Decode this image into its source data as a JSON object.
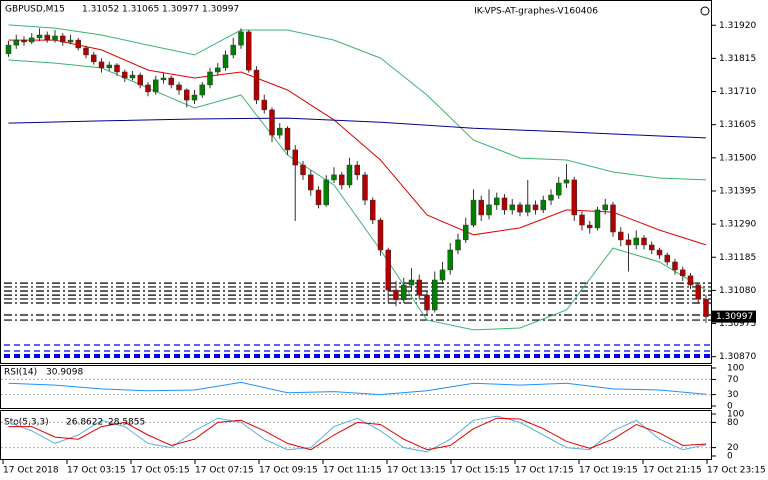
{
  "chart_data": [
    {
      "type": "candlestick",
      "title": "GBPUSD,M15",
      "label": "IK-VPS-AT-graphes-V160406",
      "open": [
        1.3183,
        1.31857,
        1.31873,
        1.31867,
        1.3188,
        1.31889,
        1.31873,
        1.31886,
        1.31867,
        1.31873,
        1.31848,
        1.31826,
        1.31804,
        1.31785,
        1.31794,
        1.31772,
        1.31753,
        1.31762,
        1.31731,
        1.31709,
        1.31747,
        1.31753,
        1.31731,
        1.31715,
        1.31683,
        1.31699,
        1.31731,
        1.31772,
        1.31785,
        1.31826,
        1.31857,
        1.31899,
        1.31778,
        1.31683,
        1.31652,
        1.31572,
        1.31594,
        1.31525,
        1.31477,
        1.31446,
        1.31398,
        1.31351,
        1.3143,
        1.31446,
        1.31414,
        1.31477,
        1.31446,
        1.31366,
        1.31303,
        1.31208,
        1.31081,
        1.3105,
        1.31097,
        1.31113,
        1.31065,
        1.31018,
        1.31113,
        1.31145,
        1.31208,
        1.3124,
        1.31287,
        1.31366,
        1.31319,
        1.31351,
        1.31373,
        1.31335,
        1.31351,
        1.31328,
        1.31351,
        1.31335,
        1.31366,
        1.31382,
        1.3142,
        1.3143,
        1.31319,
        1.31287,
        1.31278,
        1.31335,
        1.31351,
        1.31265,
        1.3124,
        1.31224,
        1.31246,
        1.31224,
        1.31208,
        1.31192,
        1.3117,
        1.31145,
        1.31126,
        1.31097,
        1.31052
      ],
      "high": [
        1.3187,
        1.3189,
        1.31885,
        1.31895,
        1.3191,
        1.319,
        1.31905,
        1.31895,
        1.3189,
        1.3188,
        1.31855,
        1.31835,
        1.31815,
        1.31805,
        1.318,
        1.3178,
        1.31775,
        1.3177,
        1.3174,
        1.3176,
        1.3177,
        1.3176,
        1.3174,
        1.3172,
        1.31715,
        1.3174,
        1.31785,
        1.318,
        1.3184,
        1.3188,
        1.3191,
        1.31905,
        1.3179,
        1.317,
        1.3166,
        1.3161,
        1.316,
        1.3154,
        1.3149,
        1.3146,
        1.3141,
        1.31445,
        1.3147,
        1.31455,
        1.315,
        1.3149,
        1.31455,
        1.31375,
        1.3131,
        1.31215,
        1.3111,
        1.3112,
        1.3115,
        1.3113,
        1.3108,
        1.3114,
        1.3117,
        1.3123,
        1.3126,
        1.3131,
        1.314,
        1.3138,
        1.314,
        1.3139,
        1.31385,
        1.3137,
        1.3136,
        1.3143,
        1.31365,
        1.3138,
        1.314,
        1.3144,
        1.3148,
        1.3144,
        1.3133,
        1.313,
        1.31345,
        1.3137,
        1.3136,
        1.3128,
        1.3126,
        1.3127,
        1.31255,
        1.31235,
        1.31215,
        1.312,
        1.3118,
        1.31155,
        1.31135,
        1.31105,
        1.31065
      ],
      "low": [
        1.3182,
        1.31845,
        1.31855,
        1.3186,
        1.3187,
        1.31865,
        1.31865,
        1.31855,
        1.3186,
        1.3184,
        1.31815,
        1.31795,
        1.3177,
        1.31775,
        1.3176,
        1.3174,
        1.31745,
        1.3172,
        1.31695,
        1.317,
        1.31735,
        1.3172,
        1.317,
        1.3166,
        1.3167,
        1.3169,
        1.3172,
        1.3176,
        1.31775,
        1.31815,
        1.31845,
        1.3177,
        1.3167,
        1.3164,
        1.3155,
        1.3156,
        1.3151,
        1.313,
        1.3143,
        1.3138,
        1.3134,
        1.31345,
        1.3142,
        1.314,
        1.31405,
        1.3143,
        1.3135,
        1.3129,
        1.3119,
        1.3104,
        1.3103,
        1.3104,
        1.3108,
        1.3105,
        1.31,
        1.3101,
        1.311,
        1.3113,
        1.31195,
        1.3123,
        1.3128,
        1.313,
        1.31305,
        1.31335,
        1.3132,
        1.3132,
        1.31315,
        1.31315,
        1.3132,
        1.31325,
        1.3135,
        1.3137,
        1.31405,
        1.313,
        1.3127,
        1.3126,
        1.3127,
        1.3132,
        1.3125,
        1.3122,
        1.3114,
        1.3121,
        1.3121,
        1.31195,
        1.3118,
        1.3116,
        1.3113,
        1.3111,
        1.31085,
        1.3104,
        1.30977
      ],
      "close": [
        1.31857,
        1.31873,
        1.31867,
        1.3188,
        1.31889,
        1.31873,
        1.31886,
        1.31867,
        1.31873,
        1.31848,
        1.31826,
        1.31804,
        1.31785,
        1.31794,
        1.31772,
        1.31753,
        1.31762,
        1.31731,
        1.31709,
        1.31747,
        1.31753,
        1.31731,
        1.31715,
        1.31683,
        1.31699,
        1.31731,
        1.31772,
        1.31785,
        1.31826,
        1.31857,
        1.31899,
        1.31778,
        1.31683,
        1.31652,
        1.31572,
        1.31594,
        1.31525,
        1.31477,
        1.31446,
        1.31398,
        1.31351,
        1.3143,
        1.31446,
        1.31414,
        1.31477,
        1.31446,
        1.31366,
        1.31303,
        1.31208,
        1.31081,
        1.3105,
        1.31097,
        1.31113,
        1.31065,
        1.31018,
        1.31113,
        1.31145,
        1.31208,
        1.3124,
        1.31287,
        1.31366,
        1.31319,
        1.31351,
        1.31373,
        1.31335,
        1.31351,
        1.31328,
        1.31351,
        1.31335,
        1.31366,
        1.31382,
        1.3142,
        1.3143,
        1.31319,
        1.31287,
        1.31278,
        1.31335,
        1.31351,
        1.31265,
        1.3124,
        1.31224,
        1.31246,
        1.31224,
        1.31208,
        1.31192,
        1.3117,
        1.31145,
        1.31126,
        1.31097,
        1.31052,
        1.30997
      ],
      "up_color": "#008000",
      "down_color": "#b00000",
      "ylim": [
        1.3085,
        1.32
      ],
      "yticks": [
        {
          "value": 1.3192,
          "label": "1.31920"
        },
        {
          "value": 1.31815,
          "label": "1.31815"
        },
        {
          "value": 1.3171,
          "label": "1.31710"
        },
        {
          "value": 1.31605,
          "label": "1.31605"
        },
        {
          "value": 1.315,
          "label": "1.31500"
        },
        {
          "value": 1.31395,
          "label": "1.31395"
        },
        {
          "value": 1.3129,
          "label": "1.31290"
        },
        {
          "value": 1.31185,
          "label": "1.31185"
        },
        {
          "value": 1.3108,
          "label": "1.31080"
        },
        {
          "value": 1.30975,
          "label": "1.30975"
        },
        {
          "value": 1.3087,
          "label": "1.30870"
        }
      ],
      "x_labels": [
        "17 Oct 2018",
        "17 Oct 03:15",
        "17 Oct 05:15",
        "17 Oct 07:15",
        "17 Oct 09:15",
        "17 Oct 11:15",
        "17 Oct 13:15",
        "17 Oct 15:15",
        "17 Oct 17:15",
        "17 Oct 19:15",
        "17 Oct 21:15",
        "17 Oct 23:15"
      ],
      "series": [
        {
          "color": "#3cb371",
          "x": [
            0,
            6,
            12,
            18,
            24,
            30,
            36,
            42,
            48,
            54,
            60,
            66,
            72,
            78,
            84,
            90
          ],
          "values": [
            1.31921,
            1.31911,
            1.31889,
            1.31857,
            1.31826,
            1.31905,
            1.31905,
            1.31873,
            1.31816,
            1.31699,
            1.31556,
            1.31499,
            1.31493,
            1.31455,
            1.31436,
            1.3143
          ]
        },
        {
          "color": "#3cb371",
          "x": [
            0,
            6,
            12,
            18,
            24,
            30,
            36,
            42,
            48,
            54,
            60,
            66,
            72,
            78,
            84,
            90
          ],
          "values": [
            1.3181,
            1.318,
            1.31785,
            1.31721,
            1.31658,
            1.31699,
            1.31509,
            1.31414,
            1.31208,
            1.30986,
            1.30955,
            1.30961,
            1.31018,
            1.31214,
            1.3117,
            1.31081
          ]
        },
        {
          "color": "#e00000",
          "x": [
            0,
            6,
            12,
            18,
            24,
            30,
            36,
            42,
            48,
            54,
            60,
            66,
            72,
            78,
            84,
            90
          ],
          "values": [
            1.31873,
            1.31873,
            1.31842,
            1.31778,
            1.31753,
            1.31772,
            1.31715,
            1.3162,
            1.31493,
            1.31319,
            1.31256,
            1.31278,
            1.31335,
            1.31328,
            1.31271,
            1.31224
          ]
        },
        {
          "color": "#000090",
          "x": [
            0,
            12,
            24,
            36,
            48,
            60,
            72,
            84,
            90
          ],
          "values": [
            1.3161,
            1.31617,
            1.31623,
            1.31626,
            1.31613,
            1.31594,
            1.31582,
            1.31569,
            1.31563
          ]
        }
      ],
      "order_lines": [
        {
          "price": 1.31103,
          "color": "#000000"
        },
        {
          "price": 1.31091,
          "color": "#000000"
        },
        {
          "price": 1.31078,
          "color": "#000000"
        },
        {
          "price": 1.31065,
          "color": "#000000"
        },
        {
          "price": 1.31053,
          "color": "#000000"
        },
        {
          "price": 1.3104,
          "color": "#000000"
        },
        {
          "price": 1.31002,
          "color": "#000000"
        },
        {
          "price": 1.30986,
          "color": "#000000"
        },
        {
          "price": 1.30907,
          "color": "#0000ff"
        },
        {
          "price": 1.30888,
          "color": "#0000ff"
        },
        {
          "price": 1.30872,
          "color": "#0000ff"
        }
      ]
    },
    {
      "type": "oscillator",
      "title": "RSI(14)",
      "ylim": [
        0,
        100
      ],
      "yticks": [
        0,
        30,
        70,
        100
      ],
      "levels": [
        30,
        70
      ],
      "series": [
        {
          "color": "#1e90ff",
          "x": [
            0,
            6,
            12,
            18,
            24,
            30,
            36,
            42,
            48,
            54,
            60,
            66,
            72,
            78,
            84,
            90
          ],
          "values": [
            60,
            55,
            45,
            40,
            42,
            62,
            35,
            38,
            30,
            40,
            60,
            55,
            60,
            45,
            42,
            30.9098
          ]
        }
      ]
    },
    {
      "type": "oscillator",
      "title": "Sto(5,3,3)",
      "ylim": [
        0,
        100
      ],
      "yticks": [
        0,
        20,
        80,
        100
      ],
      "levels": [
        20,
        80
      ],
      "series": [
        {
          "color": "#5fb0e0",
          "x": [
            0,
            3,
            6,
            9,
            12,
            15,
            18,
            21,
            24,
            27,
            30,
            33,
            36,
            39,
            42,
            45,
            48,
            51,
            54,
            57,
            60,
            63,
            66,
            69,
            72,
            75,
            78,
            81,
            84,
            87,
            90
          ],
          "values": [
            80,
            60,
            30,
            50,
            85,
            70,
            30,
            20,
            60,
            90,
            80,
            40,
            15,
            20,
            70,
            90,
            60,
            20,
            10,
            40,
            85,
            95,
            80,
            50,
            20,
            15,
            60,
            85,
            40,
            15,
            26.8622
          ]
        },
        {
          "color": "#e00000",
          "x": [
            0,
            3,
            6,
            9,
            12,
            15,
            18,
            21,
            24,
            27,
            30,
            33,
            36,
            39,
            42,
            45,
            48,
            51,
            54,
            57,
            60,
            63,
            66,
            69,
            72,
            75,
            78,
            81,
            84,
            87,
            90
          ],
          "values": [
            70,
            70,
            45,
            40,
            70,
            80,
            50,
            25,
            40,
            80,
            85,
            60,
            30,
            15,
            50,
            80,
            75,
            40,
            15,
            25,
            65,
            90,
            88,
            65,
            35,
            18,
            40,
            75,
            55,
            25,
            28.5855
          ]
        }
      ]
    }
  ]
}
